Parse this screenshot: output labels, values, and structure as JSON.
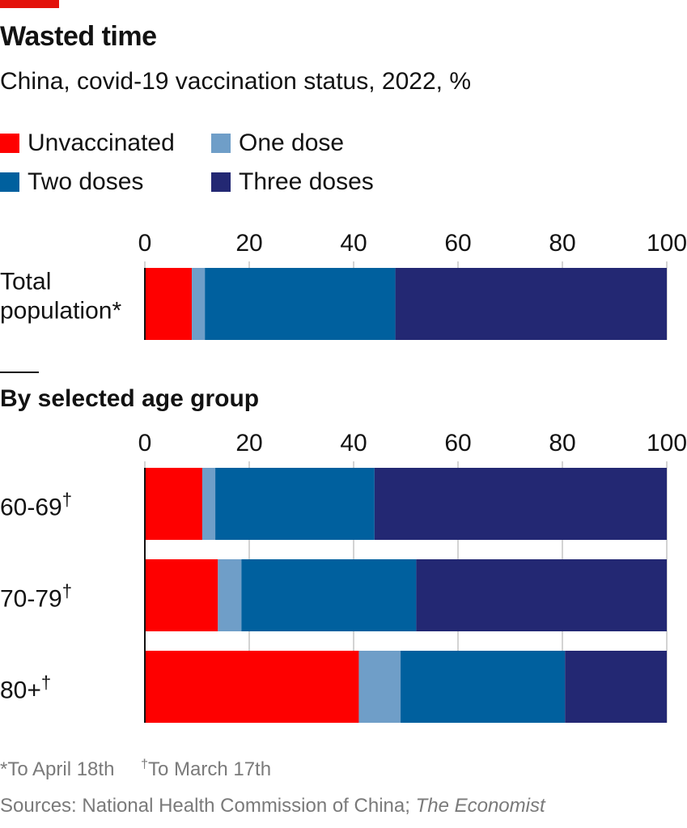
{
  "title": "Wasted time",
  "subtitle": "China, covid-19 vaccination status, 2022, %",
  "legend": [
    {
      "label": "Unvaccinated",
      "color": "#fe0000"
    },
    {
      "label": "One dose",
      "color": "#6f9ec8"
    },
    {
      "label": "Two doses",
      "color": "#00609e"
    },
    {
      "label": "Three doses",
      "color": "#232873"
    }
  ],
  "section_title": "By selected age group",
  "footnotes": {
    "note1": "*To April 18th",
    "note2_mark": "†",
    "note2": "To March 17th"
  },
  "source": {
    "prefix": "Sources: National Health Commission of China; ",
    "publication": "The Economist"
  },
  "chart_data": [
    {
      "type": "bar",
      "orientation": "horizontal",
      "stacked": true,
      "xlim": [
        0,
        100
      ],
      "ticks": [
        0,
        20,
        40,
        60,
        80,
        100
      ],
      "grid": true,
      "categories": [
        "Total population*"
      ],
      "series": [
        {
          "name": "Unvaccinated",
          "values": [
            9
          ]
        },
        {
          "name": "One dose",
          "values": [
            2.5
          ]
        },
        {
          "name": "Two doses",
          "values": [
            36.5
          ]
        },
        {
          "name": "Three doses",
          "values": [
            52
          ]
        }
      ]
    },
    {
      "type": "bar",
      "orientation": "horizontal",
      "stacked": true,
      "title": "By selected age group",
      "xlim": [
        0,
        100
      ],
      "ticks": [
        0,
        20,
        40,
        60,
        80,
        100
      ],
      "grid": true,
      "categories": [
        "60-69†",
        "70-79†",
        "80+†"
      ],
      "series": [
        {
          "name": "Unvaccinated",
          "values": [
            11,
            14,
            41
          ]
        },
        {
          "name": "One dose",
          "values": [
            2.5,
            4.5,
            8
          ]
        },
        {
          "name": "Two doses",
          "values": [
            30.5,
            33.5,
            31.5
          ]
        },
        {
          "name": "Three doses",
          "values": [
            56,
            48,
            19.5
          ]
        }
      ]
    }
  ]
}
